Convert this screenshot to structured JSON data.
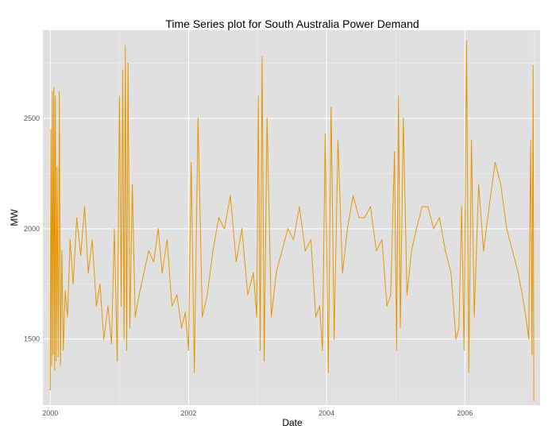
{
  "chart_data": {
    "type": "line",
    "title": "Time Series plot for South Australia Power Demand",
    "xlabel": "Date",
    "ylabel": "MW",
    "x_ticks": [
      "2000",
      "2002",
      "2004",
      "2006"
    ],
    "y_ticks": [
      1500,
      2000,
      2500
    ],
    "xlim": [
      "1999-11-23",
      "2007-02-03"
    ],
    "ylim": [
      1200,
      2900
    ],
    "grid": true,
    "legend": "none",
    "colors": {
      "series": "#E69500",
      "panel": "#E0E0E0",
      "grid_major": "#FFFFFF",
      "grid_minor": "#EDEDED",
      "tick_text": "#555555"
    },
    "series": [
      {
        "x": [
          "2000-01-01",
          "2000-01-04",
          "2000-01-08",
          "2000-01-12",
          "2000-01-16",
          "2000-01-20",
          "2000-01-24",
          "2000-01-28",
          "2000-02-01",
          "2000-02-06",
          "2000-02-12",
          "2000-02-18",
          "2000-02-24",
          "2000-03-02",
          "2000-03-10",
          "2000-03-20",
          "2000-04-01",
          "2000-04-15",
          "2000-05-01",
          "2000-05-20",
          "2000-06-10",
          "2000-07-01",
          "2000-07-20",
          "2000-08-10",
          "2000-09-01",
          "2000-09-20",
          "2000-10-10",
          "2000-11-01",
          "2000-11-20",
          "2000-12-05",
          "2000-12-20",
          "2001-01-01",
          "2001-01-10",
          "2001-01-18",
          "2001-01-25",
          "2001-02-01",
          "2001-02-08",
          "2001-02-15",
          "2001-02-25",
          "2001-03-10",
          "2001-03-25",
          "2001-04-15",
          "2001-05-10",
          "2001-06-05",
          "2001-07-01",
          "2001-07-25",
          "2001-08-15",
          "2001-09-10",
          "2001-10-05",
          "2001-11-01",
          "2001-11-25",
          "2001-12-15",
          "2002-01-01",
          "2002-01-15",
          "2002-02-01",
          "2002-02-20",
          "2002-03-15",
          "2002-04-10",
          "2002-05-10",
          "2002-06-10",
          "2002-07-10",
          "2002-08-10",
          "2002-09-10",
          "2002-10-10",
          "2002-11-10",
          "2002-12-10",
          "2002-12-28",
          "2003-01-05",
          "2003-01-15",
          "2003-01-25",
          "2003-02-05",
          "2003-02-20",
          "2003-03-15",
          "2003-04-10",
          "2003-05-10",
          "2003-06-10",
          "2003-07-10",
          "2003-08-10",
          "2003-09-10",
          "2003-10-10",
          "2003-11-05",
          "2003-11-25",
          "2003-12-10",
          "2003-12-25",
          "2004-01-10",
          "2004-01-25",
          "2004-02-10",
          "2004-03-01",
          "2004-03-25",
          "2004-04-20",
          "2004-05-20",
          "2004-06-20",
          "2004-07-20",
          "2004-08-20",
          "2004-09-20",
          "2004-10-20",
          "2004-11-15",
          "2004-12-05",
          "2004-12-25",
          "2005-01-05",
          "2005-01-15",
          "2005-01-25",
          "2005-02-10",
          "2005-03-01",
          "2005-03-25",
          "2005-04-20",
          "2005-05-20",
          "2005-06-20",
          "2005-07-20",
          "2005-08-20",
          "2005-09-20",
          "2005-10-20",
          "2005-11-15",
          "2005-12-01",
          "2005-12-15",
          "2005-12-28",
          "2006-01-10",
          "2006-01-22",
          "2006-02-05",
          "2006-02-20",
          "2006-03-15",
          "2006-04-10",
          "2006-05-10",
          "2006-06-10",
          "2006-07-10",
          "2006-08-10",
          "2006-09-10",
          "2006-10-10",
          "2006-11-01",
          "2006-11-20",
          "2006-12-05",
          "2006-12-15",
          "2006-12-22",
          "2006-12-28",
          "2007-01-01"
        ],
        "y": [
          1270,
          2450,
          1380,
          2620,
          1430,
          2640,
          1360,
          2600,
          1400,
          2280,
          1420,
          2620,
          1380,
          1900,
          1450,
          1720,
          1600,
          1950,
          1750,
          2050,
          1880,
          2100,
          1800,
          1950,
          1650,
          1750,
          1500,
          1650,
          1480,
          2000,
          1400,
          2600,
          1650,
          2720,
          1500,
          2830,
          1450,
          2750,
          1550,
          2200,
          1600,
          1700,
          1800,
          1900,
          1850,
          2000,
          1800,
          1950,
          1650,
          1700,
          1550,
          1620,
          1450,
          2300,
          1350,
          2500,
          1600,
          1700,
          1900,
          2050,
          2000,
          2150,
          1850,
          2000,
          1700,
          1800,
          1600,
          2600,
          1450,
          2780,
          1400,
          2500,
          1600,
          1800,
          1900,
          2000,
          1950,
          2100,
          1900,
          1950,
          1600,
          1650,
          1450,
          2430,
          1350,
          2550,
          1500,
          2400,
          1800,
          2000,
          2150,
          2050,
          2050,
          2100,
          1900,
          1950,
          1650,
          1700,
          2350,
          1450,
          2600,
          1550,
          2500,
          1700,
          1900,
          2000,
          2100,
          2100,
          2000,
          2050,
          1900,
          1800,
          1500,
          1550,
          2100,
          1450,
          2850,
          1350,
          2400,
          1600,
          2200,
          1900,
          2100,
          2300,
          2200,
          2000,
          1900,
          1800,
          1700,
          1600,
          1500,
          2400,
          1430,
          2740,
          1220
        ]
      }
    ]
  }
}
